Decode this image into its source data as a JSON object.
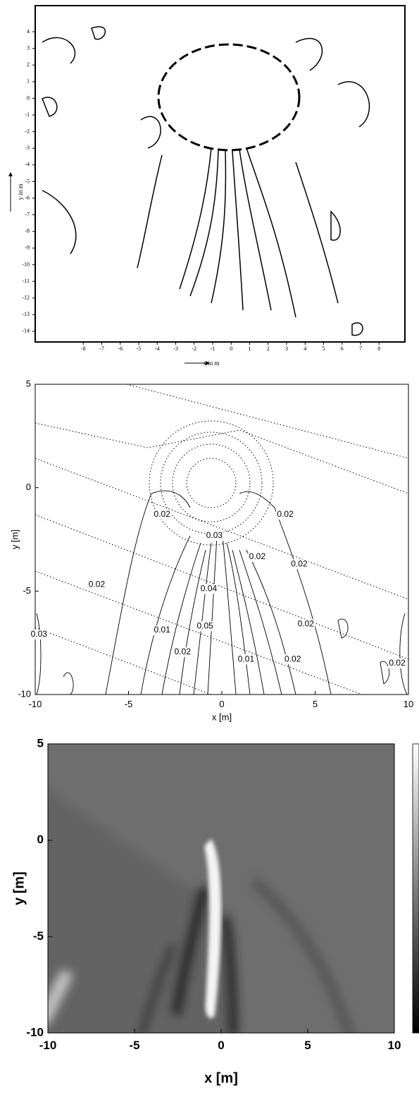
{
  "chart_data": [
    {
      "type": "contour",
      "xlabel": "x in m",
      "ylabel": "y in m",
      "xlim": [
        -10.6,
        9.4
      ],
      "ylim": [
        -14.64,
        5.57
      ],
      "xticks": [
        -8,
        -7,
        -6,
        -5,
        -4,
        -3,
        -2,
        -1,
        0,
        1,
        2,
        3,
        4,
        5,
        6,
        7,
        8
      ],
      "yticks": [
        4,
        3,
        2,
        1,
        0,
        -1,
        -2,
        -3,
        -4,
        -5,
        -6,
        -7,
        -8,
        -9,
        -10,
        -11,
        -12,
        -13,
        -14
      ],
      "grid": false
    },
    {
      "type": "contour",
      "xlabel": "x [m]",
      "ylabel": "y [m]",
      "xlim": [
        -10,
        10
      ],
      "ylim": [
        -10,
        5
      ],
      "xticks": [
        -10,
        -5,
        0,
        5,
        10
      ],
      "yticks": [
        5,
        0,
        -5,
        -10
      ],
      "grid": false,
      "contour_labels": [
        {
          "x": -3.2,
          "y": -1.3,
          "label": "0.02"
        },
        {
          "x": -0.4,
          "y": -2.33,
          "label": "0.03"
        },
        {
          "x": 1.9,
          "y": -3.35,
          "label": "0.02"
        },
        {
          "x": 3.4,
          "y": -1.3,
          "label": "0.02"
        },
        {
          "x": 4.15,
          "y": -3.7,
          "label": "0.02"
        },
        {
          "x": -6.7,
          "y": -4.7,
          "label": "0.02"
        },
        {
          "x": -9.8,
          "y": -7.1,
          "label": "0.03"
        },
        {
          "x": -3.2,
          "y": -6.9,
          "label": "0.01"
        },
        {
          "x": -2.1,
          "y": -7.95,
          "label": "0.02"
        },
        {
          "x": -0.7,
          "y": -4.9,
          "label": "0.04"
        },
        {
          "x": -0.9,
          "y": -6.7,
          "label": "0.05"
        },
        {
          "x": 1.3,
          "y": -8.3,
          "label": "0.01"
        },
        {
          "x": 4.5,
          "y": -6.6,
          "label": "0.02"
        },
        {
          "x": 3.8,
          "y": -8.3,
          "label": "0.02"
        },
        {
          "x": 9.4,
          "y": -8.5,
          "label": "0.02"
        }
      ]
    },
    {
      "type": "image",
      "xlabel": "x [m]",
      "ylabel": "y [m]",
      "xlim": [
        -10,
        10
      ],
      "ylim": [
        -10,
        5
      ],
      "xticks": [
        -10,
        -5,
        0,
        5,
        10
      ],
      "yticks": [
        5,
        0,
        -5,
        -10
      ],
      "colormap": "gray",
      "colorbar": true
    }
  ]
}
